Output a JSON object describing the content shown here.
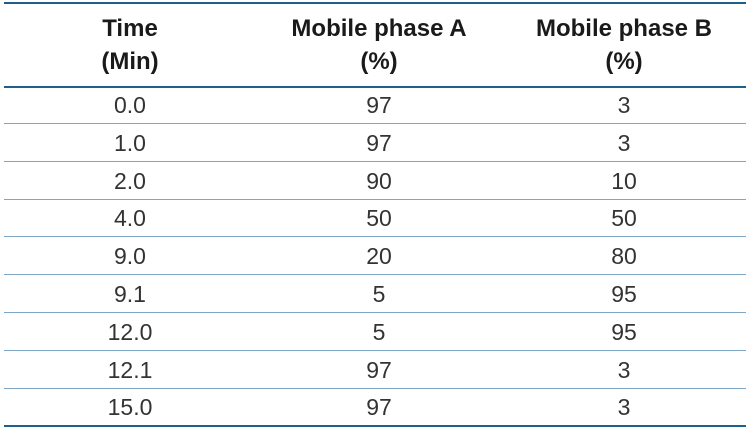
{
  "table": {
    "header": [
      [
        "Time",
        "(Min)"
      ],
      [
        "Mobile phase A",
        "(%)"
      ],
      [
        "Mobile phase B",
        "(%)"
      ]
    ],
    "rows": [
      [
        "0.0",
        "97",
        "3"
      ],
      [
        "1.0",
        "97",
        "3"
      ],
      [
        "2.0",
        "90",
        "10"
      ],
      [
        "4.0",
        "50",
        "50"
      ],
      [
        "9.0",
        "20",
        "80"
      ],
      [
        "9.1",
        "5",
        "95"
      ],
      [
        "12.0",
        "5",
        "95"
      ],
      [
        "12.1",
        "97",
        "3"
      ],
      [
        "15.0",
        "97",
        "3"
      ]
    ]
  }
}
